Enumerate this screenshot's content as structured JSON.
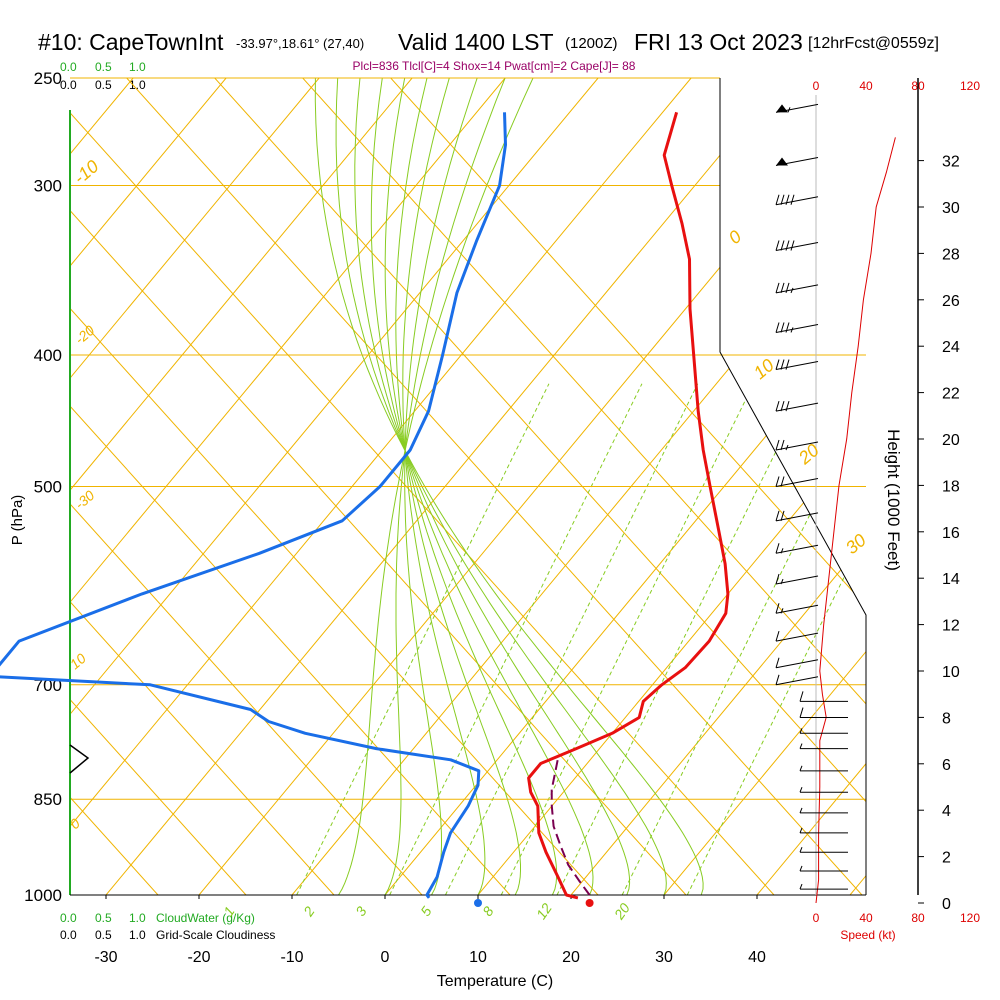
{
  "header": {
    "station": "#10: CapeTownInt",
    "coords": "-33.97°,18.61° (27,40)",
    "valid": "Valid 1400 LST",
    "zulu": "(1200Z)",
    "date": "FRI 13 Oct 2023",
    "forecast": "[12hrFcst@0559z]",
    "indices": "Plcl=836 Tlcl[C]=4 Shox=14 Pwat[cm]=2 Cape[J]= 88"
  },
  "colors": {
    "temperature": "#e81010",
    "dewpoint": "#1a6ee8",
    "parcel": "#7a0050",
    "isotherm": "#f0b400",
    "mixing_ratio": "#88cc22",
    "cloudwater": "#22aa22",
    "speed": "#dd0000",
    "indices": "#990066"
  },
  "cloud_scales": {
    "top_green": [
      "0.0",
      "0.5",
      "1.0"
    ],
    "top_black": [
      "0.0",
      "0.5",
      "1.0"
    ],
    "bottom_green": [
      "0.0",
      "0.5",
      "1.0"
    ],
    "bottom_black": [
      "0.0",
      "0.5",
      "1.0"
    ],
    "cloudwater_label": "CloudWater (g/Kg)",
    "cloudiness_label": "Grid-Scale Cloudiness"
  },
  "speed_axis": {
    "top_ticks": [
      "0",
      "40",
      "80",
      "120"
    ],
    "bottom_ticks": [
      "0",
      "40",
      "80",
      "120"
    ],
    "label": "Speed (kt)"
  },
  "chart_data": {
    "type": "skew-t",
    "title": "#10: CapeTownInt Valid 1400 LST FRI 13 Oct 2023",
    "xlabel": "Temperature (C)",
    "ylabel": "P (hPa)",
    "y2label": "Height (1000 Feet)",
    "x_ticks": [
      -30,
      -20,
      -10,
      0,
      10,
      20,
      30,
      40
    ],
    "pressure_ticks": [
      250,
      300,
      400,
      500,
      700,
      850,
      1000
    ],
    "height_ticks": [
      0,
      2,
      4,
      6,
      8,
      10,
      12,
      14,
      16,
      18,
      20,
      22,
      24,
      26,
      28,
      30,
      32
    ],
    "isotherm_labels": [
      "-10",
      "0",
      "10",
      "20",
      "30",
      "-20",
      "-30",
      "10",
      "0"
    ],
    "mixing_ratio_labels": [
      "1",
      "2",
      "3",
      "5",
      "8",
      "12",
      "20"
    ],
    "temperature_profile": [
      {
        "p": 1005,
        "t": 21.0
      },
      {
        "p": 1000,
        "t": 19.5
      },
      {
        "p": 970,
        "t": 17.0
      },
      {
        "p": 930,
        "t": 13.5
      },
      {
        "p": 900,
        "t": 11.0
      },
      {
        "p": 860,
        "t": 8.5
      },
      {
        "p": 840,
        "t": 6.5
      },
      {
        "p": 820,
        "t": 5.0
      },
      {
        "p": 800,
        "t": 5.0
      },
      {
        "p": 780,
        "t": 7.5
      },
      {
        "p": 760,
        "t": 10.0
      },
      {
        "p": 740,
        "t": 11.5
      },
      {
        "p": 720,
        "t": 10.5
      },
      {
        "p": 700,
        "t": 11.0
      },
      {
        "p": 680,
        "t": 12.0
      },
      {
        "p": 650,
        "t": 12.2
      },
      {
        "p": 620,
        "t": 11.5
      },
      {
        "p": 600,
        "t": 10.0
      },
      {
        "p": 570,
        "t": 7.0
      },
      {
        "p": 540,
        "t": 3.5
      },
      {
        "p": 500,
        "t": -1.5
      },
      {
        "p": 470,
        "t": -5.5
      },
      {
        "p": 440,
        "t": -9.5
      },
      {
        "p": 400,
        "t": -15.0
      },
      {
        "p": 370,
        "t": -19.5
      },
      {
        "p": 340,
        "t": -24.0
      },
      {
        "p": 320,
        "t": -28.0
      },
      {
        "p": 300,
        "t": -32.5
      },
      {
        "p": 285,
        "t": -36.0
      },
      {
        "p": 265,
        "t": -38.5
      }
    ],
    "dewpoint_profile": [
      {
        "p": 1005,
        "t": 5.0
      },
      {
        "p": 1000,
        "t": 4.5
      },
      {
        "p": 970,
        "t": 4.0
      },
      {
        "p": 930,
        "t": 2.5
      },
      {
        "p": 900,
        "t": 1.5
      },
      {
        "p": 860,
        "t": 1.0
      },
      {
        "p": 830,
        "t": 0.2
      },
      {
        "p": 810,
        "t": -1.0
      },
      {
        "p": 795,
        "t": -5.0
      },
      {
        "p": 780,
        "t": -14.0
      },
      {
        "p": 760,
        "t": -23.0
      },
      {
        "p": 745,
        "t": -28.0
      },
      {
        "p": 730,
        "t": -31.0
      },
      {
        "p": 700,
        "t": -44.0
      },
      {
        "p": 690,
        "t": -62.0
      },
      {
        "p": 650,
        "t": -62.0
      },
      {
        "p": 600,
        "t": -53.0
      },
      {
        "p": 560,
        "t": -44.0
      },
      {
        "p": 530,
        "t": -38.0
      },
      {
        "p": 500,
        "t": -37.0
      },
      {
        "p": 470,
        "t": -37.0
      },
      {
        "p": 440,
        "t": -38.5
      },
      {
        "p": 400,
        "t": -42.0
      },
      {
        "p": 360,
        "t": -46.0
      },
      {
        "p": 330,
        "t": -48.5
      },
      {
        "p": 300,
        "t": -51.0
      },
      {
        "p": 280,
        "t": -54.0
      },
      {
        "p": 265,
        "t": -57.0
      }
    ],
    "parcel_profile": [
      {
        "p": 1000,
        "t": 22.0
      },
      {
        "p": 975,
        "t": 19.5
      },
      {
        "p": 950,
        "t": 17.0
      },
      {
        "p": 920,
        "t": 14.5
      },
      {
        "p": 890,
        "t": 12.0
      },
      {
        "p": 860,
        "t": 10.0
      },
      {
        "p": 836,
        "t": 8.5
      },
      {
        "p": 815,
        "t": 7.5
      },
      {
        "p": 795,
        "t": 6.5
      }
    ],
    "surface_temperature": 22.0,
    "surface_dewpoint": 10.0,
    "speed_profile": [
      {
        "h": 0,
        "kt": 0
      },
      {
        "h": 1,
        "kt": 2
      },
      {
        "h": 3,
        "kt": 2
      },
      {
        "h": 5,
        "kt": 3
      },
      {
        "h": 7,
        "kt": 3
      },
      {
        "h": 8,
        "kt": 8
      },
      {
        "h": 9,
        "kt": 5
      },
      {
        "h": 10,
        "kt": 3
      },
      {
        "h": 12,
        "kt": 6
      },
      {
        "h": 14,
        "kt": 10
      },
      {
        "h": 16,
        "kt": 14
      },
      {
        "h": 18,
        "kt": 18
      },
      {
        "h": 20,
        "kt": 24
      },
      {
        "h": 22,
        "kt": 28
      },
      {
        "h": 24,
        "kt": 33
      },
      {
        "h": 26,
        "kt": 37
      },
      {
        "h": 28,
        "kt": 43
      },
      {
        "h": 30,
        "kt": 47
      },
      {
        "h": 31.5,
        "kt": 55
      },
      {
        "h": 33,
        "kt": 62
      }
    ],
    "wind_barbs": [
      {
        "p": 265,
        "kt": 55
      },
      {
        "p": 290,
        "kt": 50
      },
      {
        "p": 310,
        "kt": 40
      },
      {
        "p": 335,
        "kt": 40
      },
      {
        "p": 360,
        "kt": 35
      },
      {
        "p": 385,
        "kt": 35
      },
      {
        "p": 410,
        "kt": 30
      },
      {
        "p": 440,
        "kt": 30
      },
      {
        "p": 470,
        "kt": 25
      },
      {
        "p": 500,
        "kt": 20
      },
      {
        "p": 530,
        "kt": 20
      },
      {
        "p": 560,
        "kt": 15
      },
      {
        "p": 590,
        "kt": 15
      },
      {
        "p": 620,
        "kt": 15
      },
      {
        "p": 650,
        "kt": 10
      },
      {
        "p": 680,
        "kt": 10
      },
      {
        "p": 700,
        "kt": 10
      },
      {
        "p": 720,
        "kt": 10
      },
      {
        "p": 740,
        "kt": 10
      },
      {
        "p": 760,
        "kt": 5
      },
      {
        "p": 780,
        "kt": 5
      },
      {
        "p": 810,
        "kt": 5
      },
      {
        "p": 840,
        "kt": 5
      },
      {
        "p": 870,
        "kt": 5
      },
      {
        "p": 900,
        "kt": 5
      },
      {
        "p": 930,
        "kt": 5
      },
      {
        "p": 960,
        "kt": 5
      },
      {
        "p": 990,
        "kt": 5
      }
    ]
  }
}
